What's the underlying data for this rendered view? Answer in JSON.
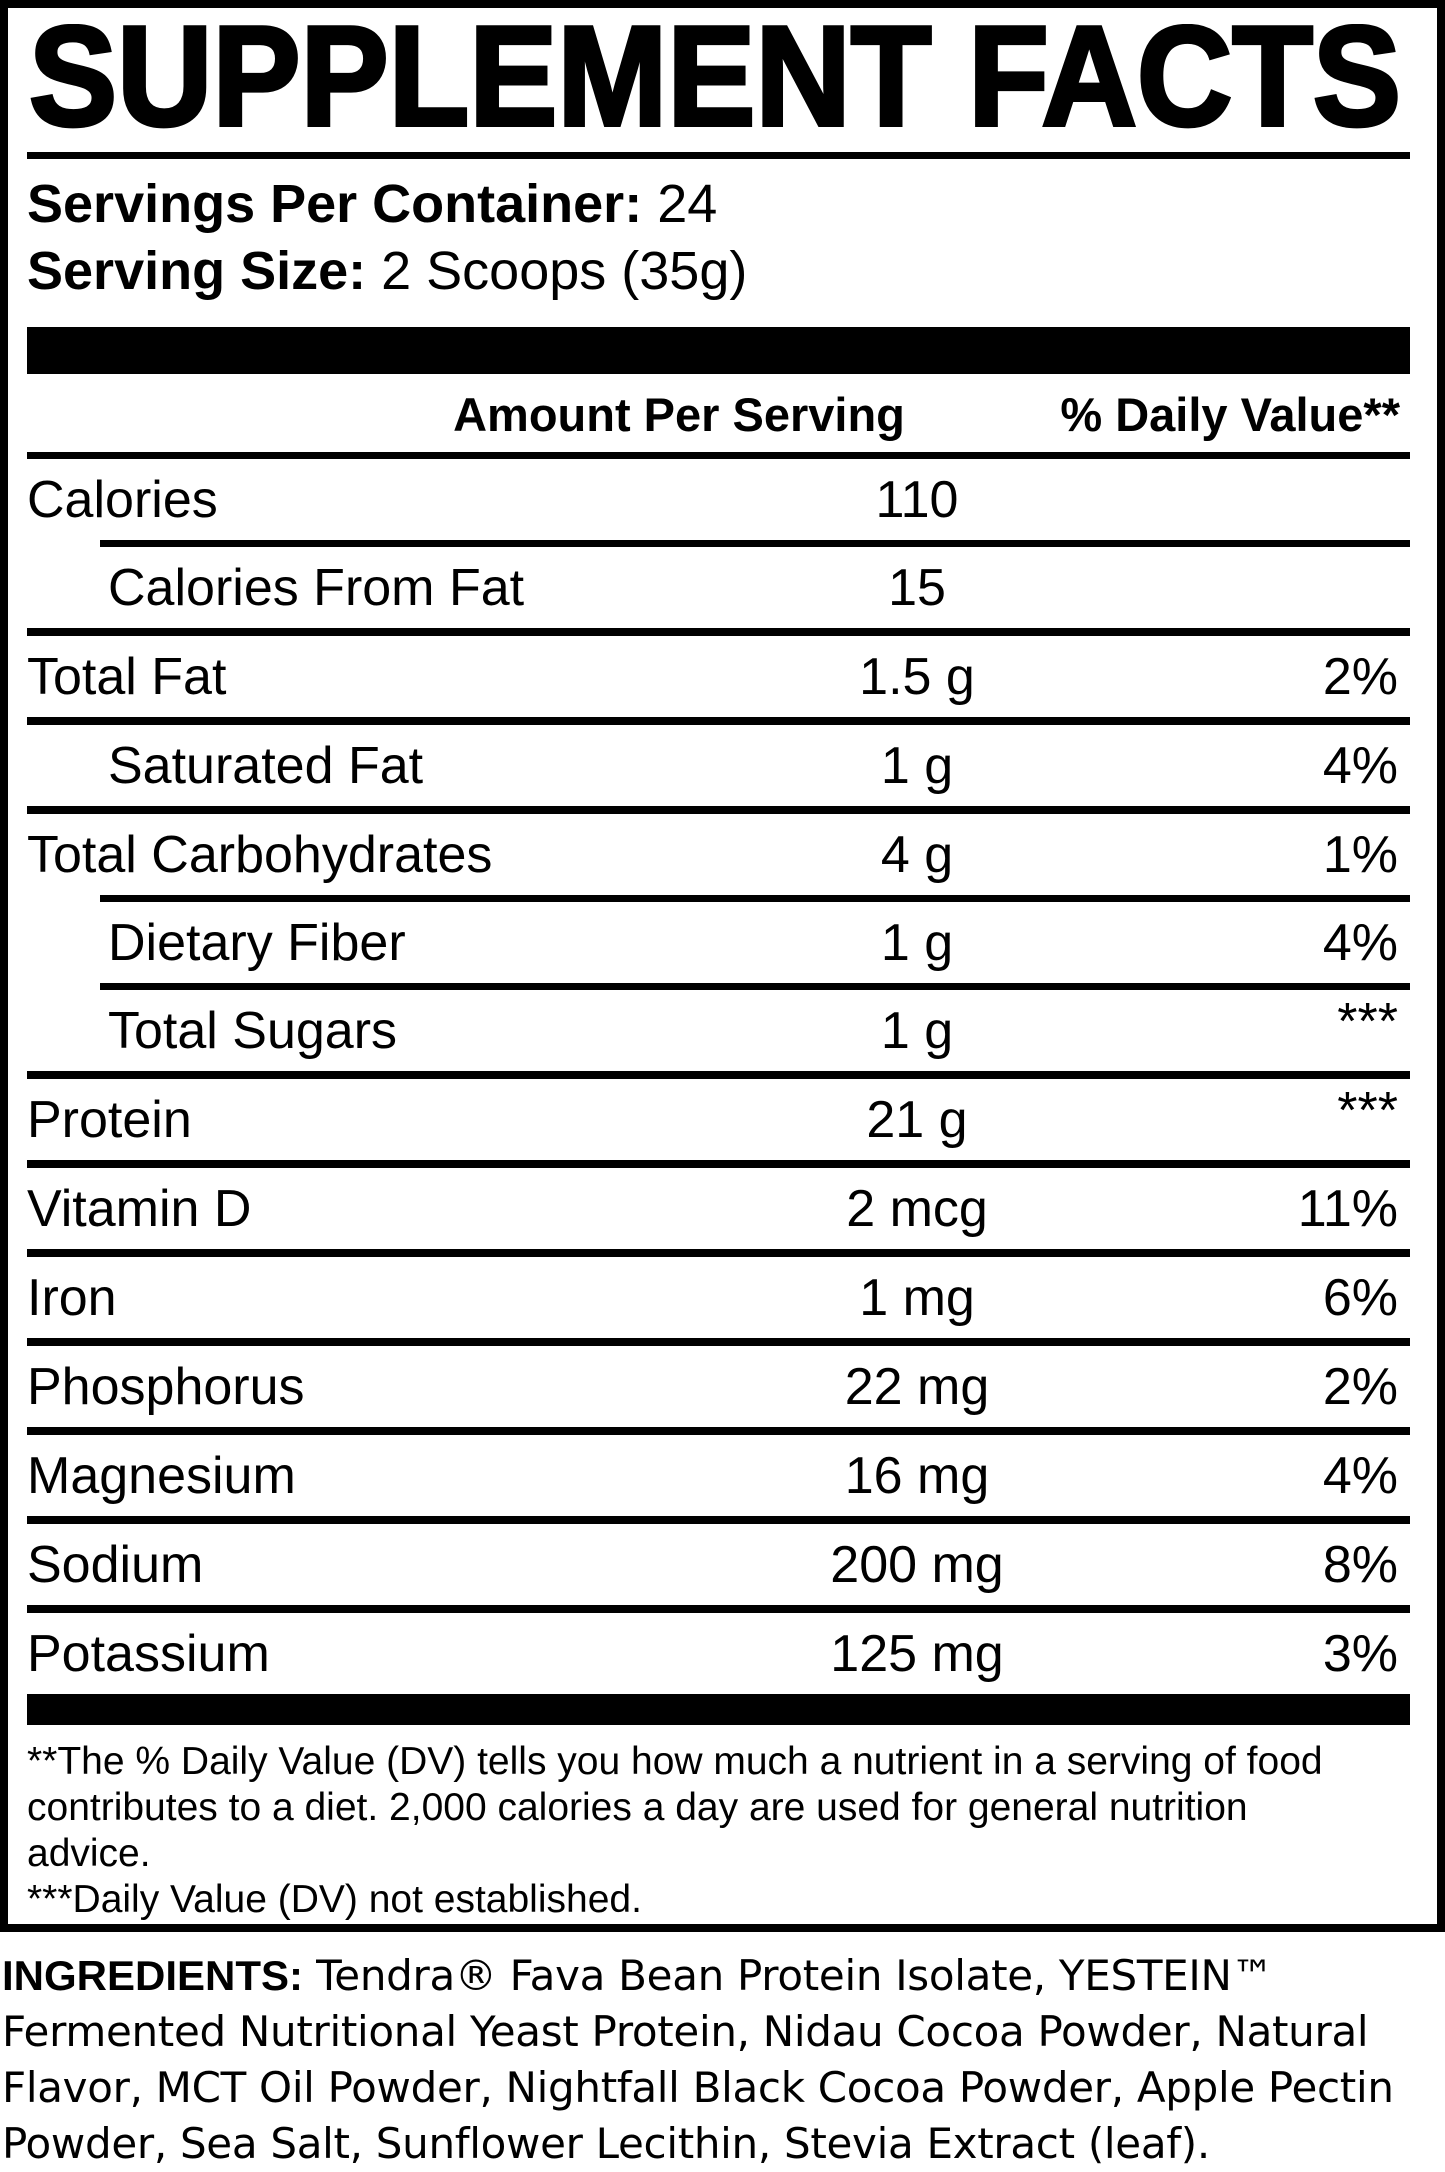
{
  "colors": {
    "text": "#000000",
    "background": "#ffffff"
  },
  "label": {
    "title": "SUPPLEMENT FACTS",
    "servings_per_container_label": "Servings Per Container:",
    "servings_per_container_value": "24",
    "serving_size_label": "Serving Size:",
    "serving_size_value": "2 Scoops (35g)",
    "columns": {
      "amount": "Amount Per Serving",
      "daily_value": "% Daily Value**"
    },
    "rows": [
      {
        "name": "Calories",
        "amount": "110",
        "dv": ""
      },
      {
        "name": "Calories From Fat",
        "amount": "15",
        "dv": ""
      },
      {
        "name": "Total Fat",
        "amount": "1.5 g",
        "dv": "2%"
      },
      {
        "name": "Saturated Fat",
        "amount": "1 g",
        "dv": "4%"
      },
      {
        "name": "Total Carbohydrates",
        "amount": "4 g",
        "dv": "1%"
      },
      {
        "name": "Dietary Fiber",
        "amount": "1 g",
        "dv": "4%"
      },
      {
        "name": "Total Sugars",
        "amount": "1 g",
        "dv": "***"
      },
      {
        "name": "Protein",
        "amount": "21 g",
        "dv": "***"
      },
      {
        "name": "Vitamin D",
        "amount": "2 mcg",
        "dv": "11%"
      },
      {
        "name": "Iron",
        "amount": "1 mg",
        "dv": "6%"
      },
      {
        "name": "Phosphorus",
        "amount": "22 mg",
        "dv": "2%"
      },
      {
        "name": "Magnesium",
        "amount": "16 mg",
        "dv": "4%"
      },
      {
        "name": "Sodium",
        "amount": "200 mg",
        "dv": "8%"
      },
      {
        "name": "Potassium",
        "amount": "125 mg",
        "dv": "3%"
      }
    ],
    "footnotes": [
      "**The % Daily Value (DV) tells you how much a nutrient in a serving of food contributes to a diet. 2,000 calories a day are used for general nutrition advice.",
      "***Daily Value (DV) not established."
    ]
  },
  "ingredients": {
    "heading": "INGREDIENTS:",
    "text": "Tendra® Fava Bean Protein Isolate, YESTEIN™ Fermented Nutritional Yeast Protein, Nidau Cocoa Powder, Natural Flavor, MCT Oil Powder, Nightfall Black Cocoa Powder, Apple Pectin Powder, Sea Salt, Sunflower Lecithin, Stevia Extract (leaf)."
  }
}
